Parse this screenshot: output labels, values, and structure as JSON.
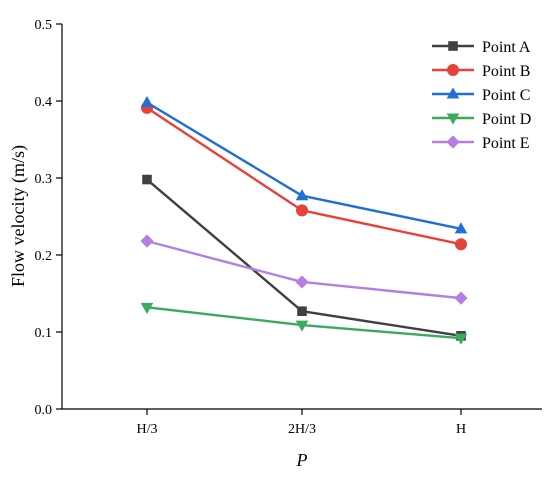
{
  "chart_data": {
    "type": "line",
    "title": "",
    "xlabel": "P",
    "ylabel": "Flow velocity (m/s)",
    "categories": [
      "H/3",
      "2H/3",
      "H"
    ],
    "ylim": [
      0,
      0.5
    ],
    "yticks": [
      0.0,
      0.1,
      0.2,
      0.3,
      0.4,
      0.5
    ],
    "ytick_labels": [
      "0.0",
      "0.1",
      "0.2",
      "0.3",
      "0.4",
      "0.5"
    ],
    "grid": false,
    "legend_position": "top-right",
    "series": [
      {
        "name": "Point A",
        "values": [
          0.298,
          0.127,
          0.095
        ],
        "color": "#404040",
        "marker": "square"
      },
      {
        "name": "Point B",
        "values": [
          0.391,
          0.258,
          0.214
        ],
        "color": "#e8413c",
        "marker": "circle"
      },
      {
        "name": "Point C",
        "values": [
          0.398,
          0.277,
          0.234
        ],
        "color": "#1f6fd6",
        "marker": "triangle-up"
      },
      {
        "name": "Point D",
        "values": [
          0.132,
          0.109,
          0.092
        ],
        "color": "#3aaa5c",
        "marker": "triangle-down"
      },
      {
        "name": "Point E",
        "values": [
          0.218,
          0.165,
          0.144
        ],
        "color": "#b47fe0",
        "marker": "diamond"
      }
    ]
  }
}
